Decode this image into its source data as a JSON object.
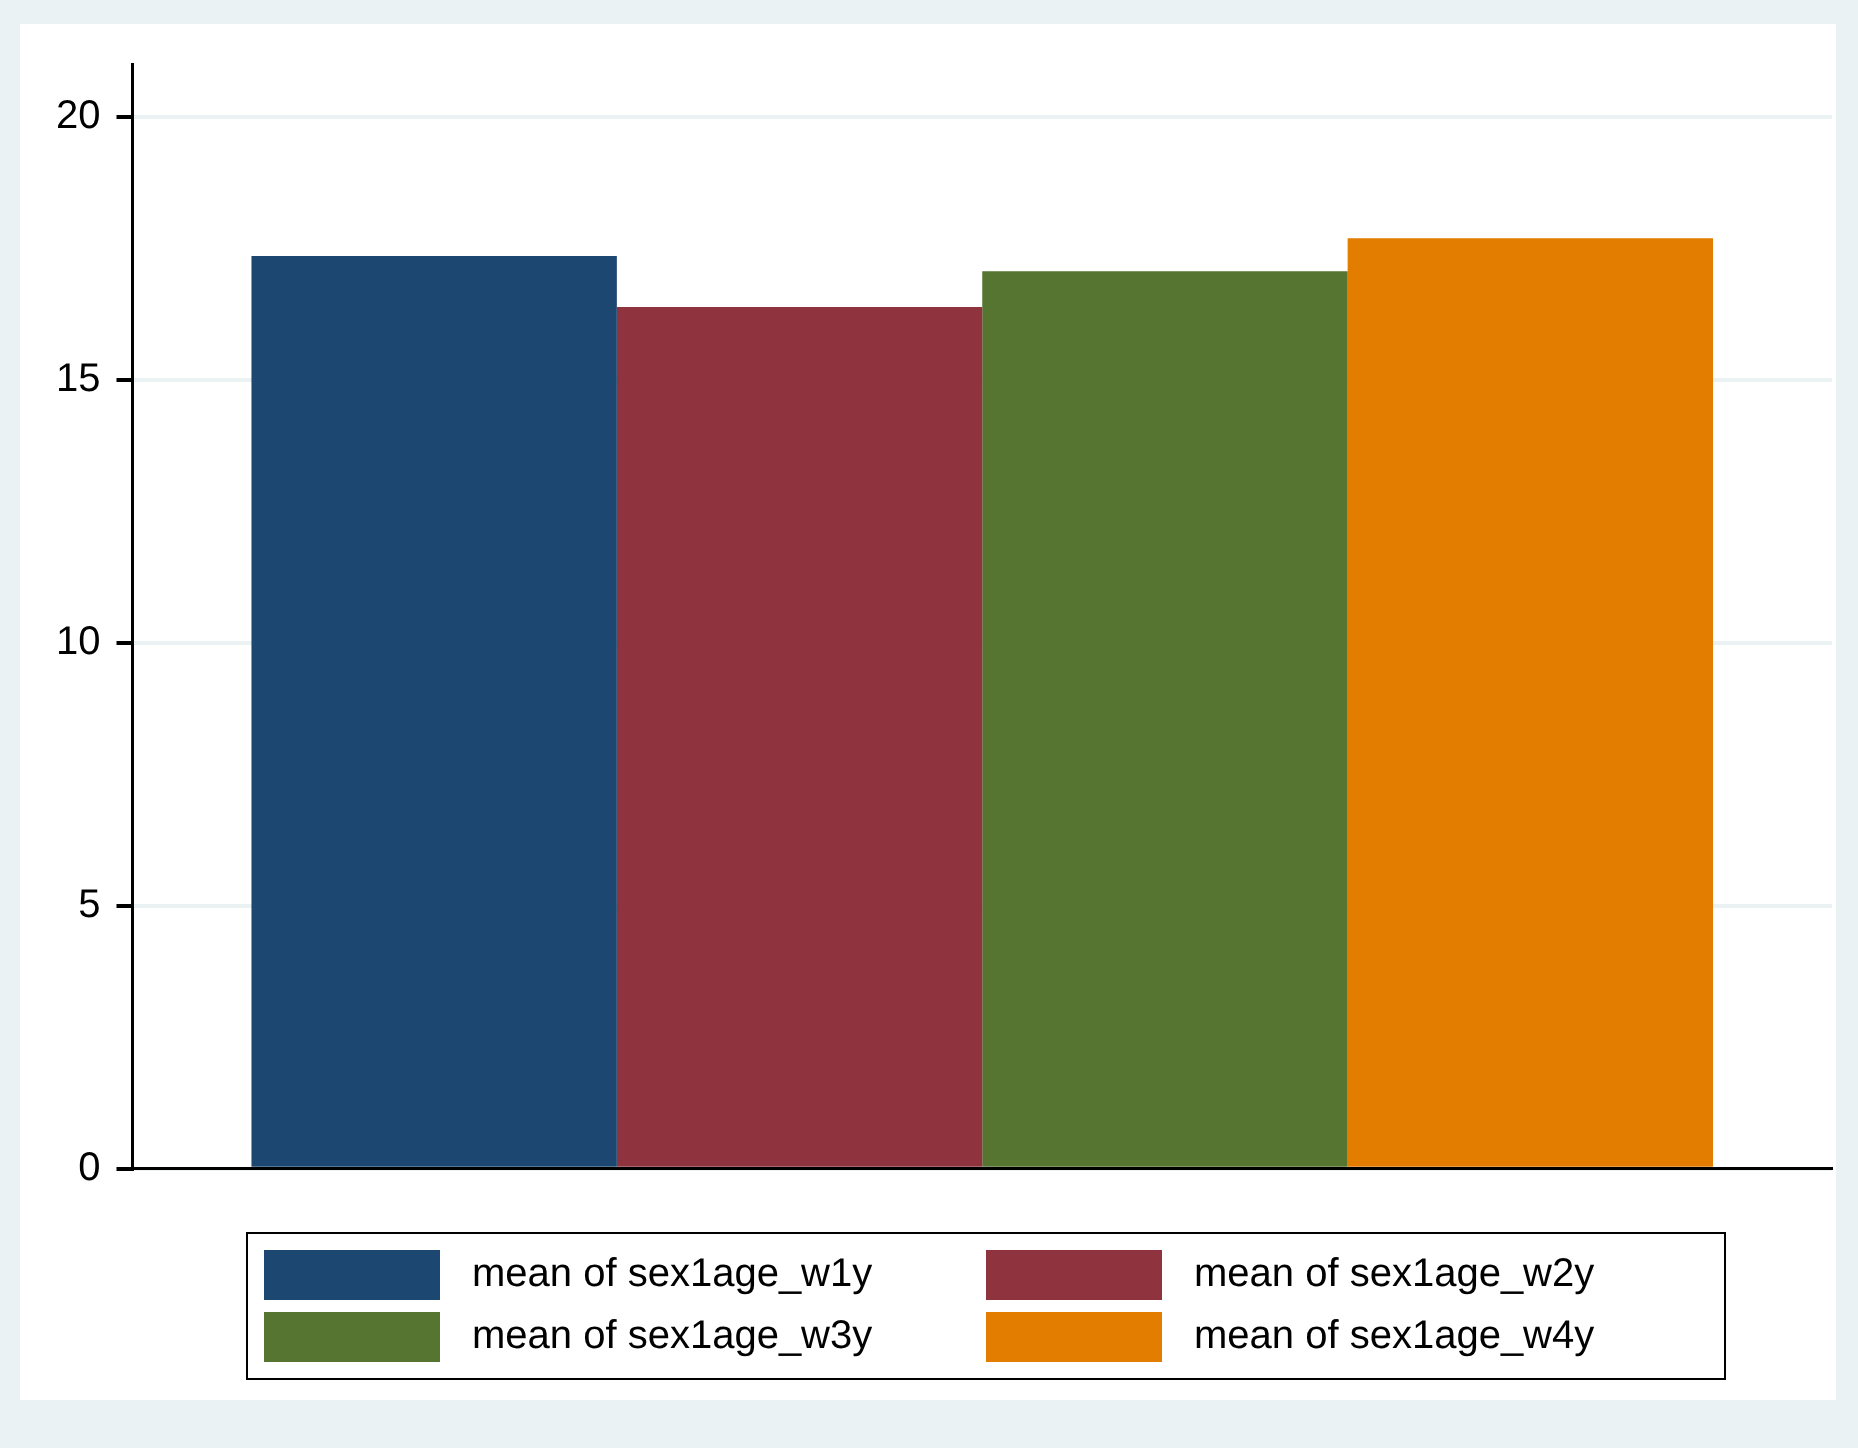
{
  "chart_data": {
    "type": "bar",
    "categories": [
      null
    ],
    "series": [
      {
        "name": "mean of sex1age_w1y",
        "color": "#1c4770",
        "values": [
          17.35
        ]
      },
      {
        "name": "mean of sex1age_w2y",
        "color": "#8f343e",
        "values": [
          16.38
        ]
      },
      {
        "name": "mean of sex1age_w3y",
        "color": "#557530",
        "values": [
          17.06
        ]
      },
      {
        "name": "mean of sex1age_w4y",
        "color": "#e37d00",
        "values": [
          17.69
        ]
      }
    ],
    "ylim": [
      0,
      21
    ],
    "yticks": [
      0,
      5,
      10,
      15,
      20
    ],
    "grid": "y",
    "legend": "bottom"
  }
}
